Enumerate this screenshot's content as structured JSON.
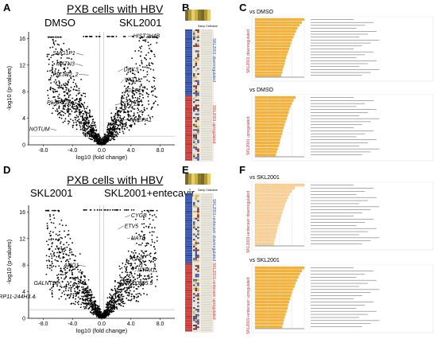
{
  "figure": {
    "panels": {
      "A": {
        "letter": "A",
        "title": "PXB cells with HBV",
        "left_group": "DMSO",
        "right_group": "SKL2001",
        "xlabel": "log10 (fold change)",
        "ylabel": "-log10 (p-values)",
        "x_ticks": [
          "-8.0",
          "-4.0",
          "0.0",
          "4.0",
          "8.0"
        ],
        "y_ticks": [
          "0",
          "4",
          "8",
          "12",
          "16"
        ],
        "genes_left": [
          "SMG1P1",
          "MATN3",
          "PIK3R2_2",
          "PLA2G2A",
          "NOTUM"
        ],
        "genes_right": [
          "HIST2H4B",
          "DKK3",
          "VAT1L",
          "IGSF1",
          "SYT11",
          "PMEPA1"
        ]
      },
      "B": {
        "letter": "B",
        "side_label_top": "SKL2001 downregulated",
        "side_label_bottom": "SKL2001 upregulated",
        "header": "Samp Cellname"
      },
      "C": {
        "letter": "C",
        "subtitle_top": "vs DMSO",
        "subtitle_bottom": "vs DMSO",
        "side_label_top": "SKL2001 downregulated",
        "side_label_bottom": "SKL2001 upregulated",
        "bars_top": [
          1.0,
          0.95,
          0.9,
          0.86,
          0.83,
          0.8,
          0.78,
          0.75,
          0.73,
          0.71,
          0.69,
          0.67,
          0.65,
          0.63,
          0.61,
          0.6,
          0.58,
          0.56,
          0.55,
          0.53
        ],
        "bars_bottom": [
          0.82,
          0.78,
          0.75,
          0.72,
          0.7,
          0.68,
          0.66,
          0.64,
          0.62,
          0.6,
          0.58,
          0.56,
          0.55,
          0.53,
          0.51,
          0.5,
          0.48,
          0.46,
          0.44,
          0.42
        ]
      },
      "D": {
        "letter": "D",
        "title": "PXB cells with HBV",
        "left_group": "SKL2001",
        "right_group": "SKL2001+entecavir",
        "xlabel": "log10 (fold change)",
        "ylabel": "-log10 (p-values)",
        "x_ticks": [
          "-8.0",
          "-4.0",
          "0.0",
          "4.0",
          "8.0"
        ],
        "y_ticks": [
          "0",
          "4",
          "8",
          "12",
          "16"
        ],
        "genes_left": [
          "ANO1",
          "GALNT16",
          "RP11-244H3.4"
        ],
        "genes_right": [
          "CYGB",
          "ETV5",
          "NAT8",
          "CRP",
          "IFITM1",
          "AP000295.9"
        ]
      },
      "E": {
        "letter": "E",
        "side_label_top": "SKL2001+entecavir downregulated",
        "side_label_bottom": "SKL2001+entecavir upregulated",
        "header": "Samp Cellname"
      },
      "F": {
        "letter": "F",
        "subtitle_top": "vs SKL2001",
        "subtitle_bottom": "vs SKL2001",
        "side_label_top": "SKL2001+entecavir downregulated",
        "side_label_bottom": "SKL2001+entecavir upregulated",
        "bars_top": [
          1.0,
          0.8,
          0.74,
          0.7,
          0.67,
          0.64,
          0.61,
          0.59,
          0.57,
          0.55,
          0.53,
          0.51,
          0.49,
          0.47,
          0.45,
          0.44,
          0.42,
          0.41,
          0.39,
          0.38
        ],
        "bars_bottom": [
          1.0,
          0.95,
          0.91,
          0.88,
          0.85,
          0.82,
          0.8,
          0.77,
          0.75,
          0.73,
          0.71,
          0.69,
          0.67,
          0.66,
          0.64,
          0.62,
          0.6,
          0.58,
          0.57,
          0.55
        ]
      }
    }
  },
  "colors": {
    "dot": "#000000",
    "bar_top": "#f5b233",
    "bar_bottom": "#fbd39a",
    "side_blue": "#2a4aa8",
    "side_red": "#c8322e",
    "heat_bg": "#f0ede0"
  }
}
